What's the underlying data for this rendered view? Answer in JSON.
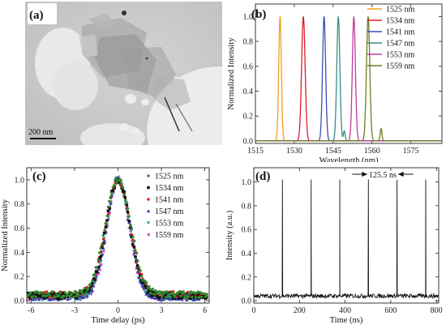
{
  "panels": {
    "a": {
      "label": "(a)",
      "scale_bar_label": "200 nm"
    },
    "b": {
      "label": "(b)"
    },
    "c": {
      "label": "(c)"
    },
    "d": {
      "label": "(d)",
      "annotation": "125.5 ns"
    }
  },
  "chart_data": [
    {
      "id": "b",
      "type": "line",
      "xlabel": "Wavelength (nm)",
      "ylabel": "Normalized Intensity",
      "xlim": [
        1515,
        1587
      ],
      "ylim": [
        -0.02,
        1.1
      ],
      "xticks": [
        1515,
        1530,
        1545,
        1560,
        1575
      ],
      "yticks": [
        0.0,
        0.2,
        0.4,
        0.6,
        0.8,
        1.0
      ],
      "legend_position": "top-right",
      "series": [
        {
          "name": "1525 nm",
          "color": "#f0a020",
          "center": 1524.5,
          "fwhm": 1.2,
          "sidepeak": null
        },
        {
          "name": "1534 nm",
          "color": "#dd1a2a",
          "center": 1533.5,
          "fwhm": 1.6,
          "sidepeak": null
        },
        {
          "name": "1541 nm",
          "color": "#3b4fb8",
          "center": 1541.5,
          "fwhm": 1.4,
          "sidepeak": null
        },
        {
          "name": "1547 nm",
          "color": "#3a8c86",
          "center": 1547,
          "fwhm": 1.4,
          "sidepeak": {
            "x": 1549.3,
            "y": 0.08
          }
        },
        {
          "name": "1553 nm",
          "color": "#c23aa0",
          "center": 1553,
          "fwhm": 1.4,
          "sidepeak": null
        },
        {
          "name": "1559 nm",
          "color": "#707a1f",
          "center": 1558.5,
          "fwhm": 1.5,
          "sidepeak": {
            "x": 1563.5,
            "y": 0.1
          }
        }
      ]
    },
    {
      "id": "c",
      "type": "scatter",
      "xlabel": "Time delay (ps)",
      "ylabel": "Normalized Intensity",
      "xlim": [
        -6.3,
        6.3
      ],
      "ylim": [
        -0.02,
        1.1
      ],
      "xticks": [
        -6,
        -3,
        0,
        3,
        6
      ],
      "yticks": [
        0.0,
        0.2,
        0.4,
        0.6,
        0.8,
        1.0
      ],
      "legend_position": "top-right",
      "series": [
        {
          "name": "1525 nm",
          "color": "#2e8b2e",
          "marker": "circle",
          "width_ps": 1.05,
          "baseline": 0.05
        },
        {
          "name": "1534 nm",
          "color": "#111111",
          "marker": "square",
          "width_ps": 1.0,
          "baseline": 0.04
        },
        {
          "name": "1541 nm",
          "color": "#dd1a1a",
          "marker": "circle",
          "width_ps": 1.0,
          "baseline": 0.05
        },
        {
          "name": "1547 nm",
          "color": "#2a3fb0",
          "marker": "triangle-up",
          "width_ps": 0.95,
          "baseline": 0.03
        },
        {
          "name": "1553 nm",
          "color": "#2aa0a0",
          "marker": "triangle-down",
          "width_ps": 0.95,
          "baseline": 0.03
        },
        {
          "name": "1559 nm",
          "color": "#c040c0",
          "marker": "triangle-left",
          "width_ps": 0.92,
          "baseline": 0.03
        }
      ]
    },
    {
      "id": "d",
      "type": "line",
      "xlabel": "Time (ns)",
      "ylabel": "Intensity (a.u.)",
      "xlim": [
        0,
        810
      ],
      "ylim": [
        -0.02,
        1.12
      ],
      "xticks": [
        0,
        200,
        400,
        600,
        800
      ],
      "yticks": [
        0.0,
        0.2,
        0.4,
        0.6,
        0.8,
        1.0
      ],
      "period_ns": 125.5,
      "pulse_times_ns": [
        125.5,
        251.0,
        376.5,
        502.0,
        627.5,
        753.0
      ],
      "pulse_height": 1.02,
      "noise_baseline": 0.04
    }
  ],
  "colors": {
    "tem_background": "#c9c9c9",
    "axis": "#222222"
  }
}
